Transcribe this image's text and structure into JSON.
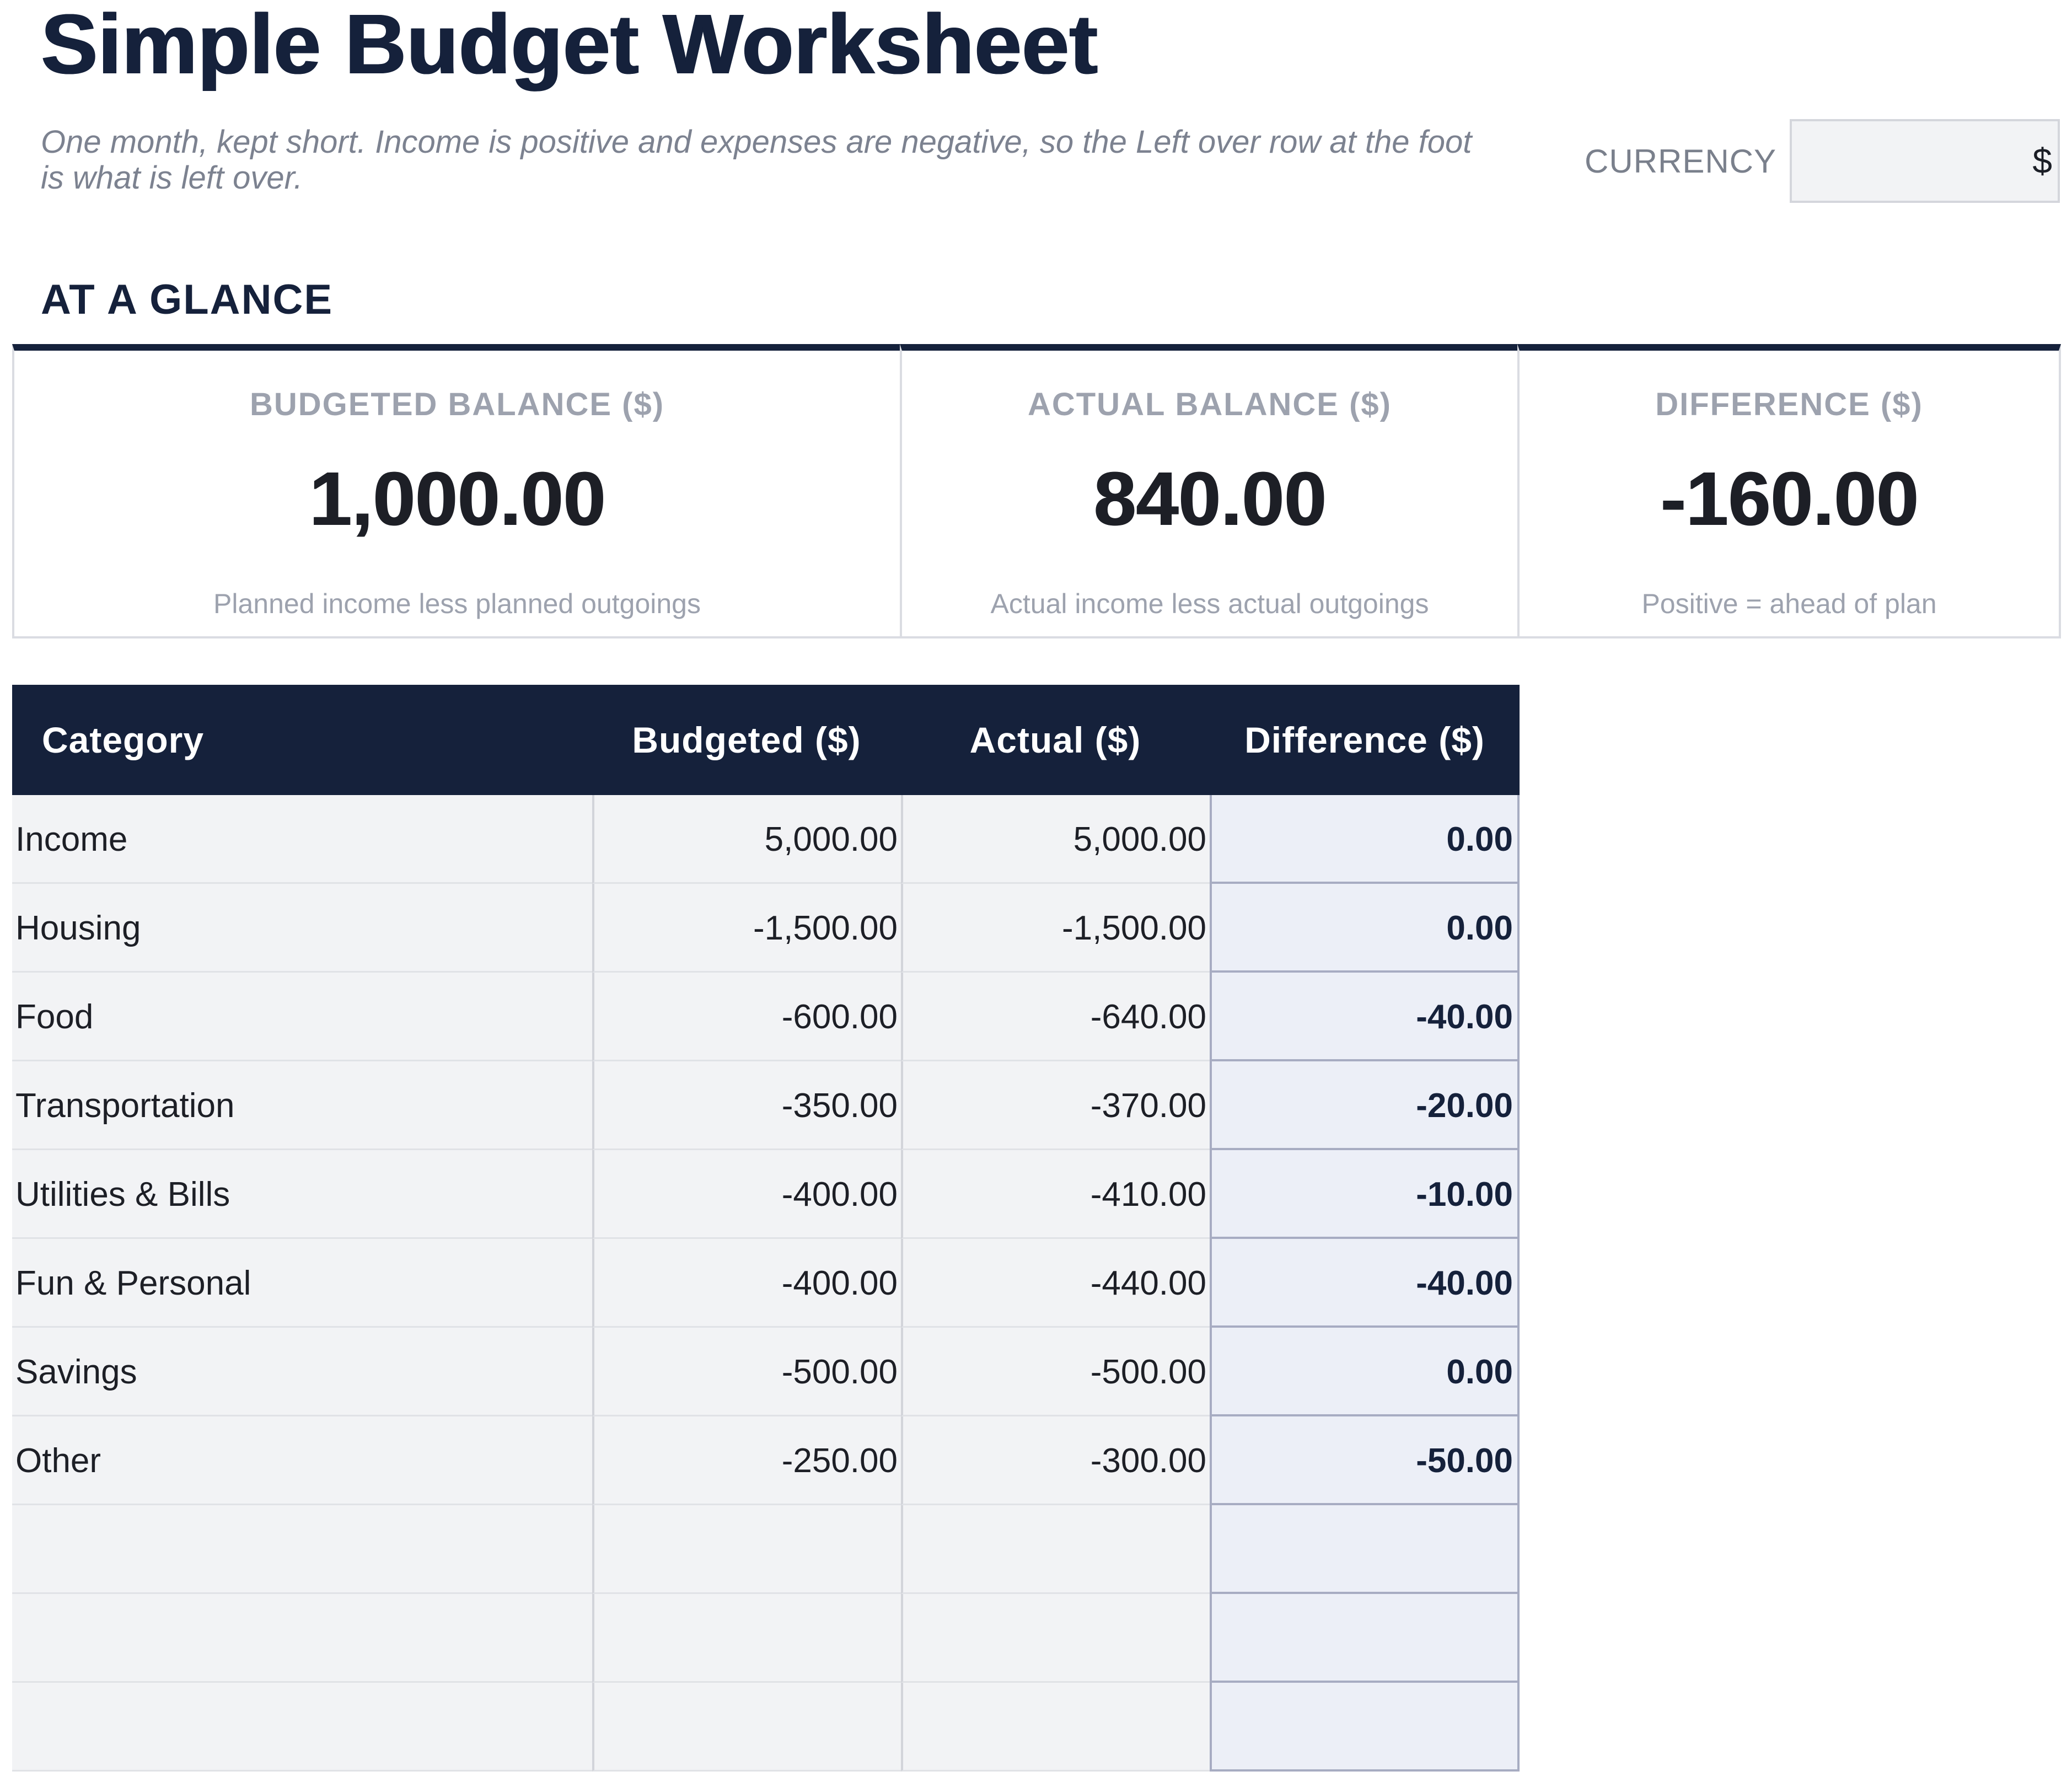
{
  "header": {
    "title": "Simple Budget Worksheet",
    "subtitle": "One month, kept short. Income is positive and expenses are negative, so the Left over row at the foot is what is left over.",
    "currency_label": "CURRENCY",
    "currency_value": "$"
  },
  "glance": {
    "section_title": "AT A GLANCE",
    "cards": [
      {
        "label": "BUDGETED BALANCE ($)",
        "value": "1,000.00",
        "note": "Planned income less planned outgoings"
      },
      {
        "label": "ACTUAL BALANCE ($)",
        "value": "840.00",
        "note": "Actual income less actual outgoings"
      },
      {
        "label": "DIFFERENCE ($)",
        "value": "-160.00",
        "note": "Positive = ahead of plan"
      }
    ]
  },
  "table": {
    "columns": [
      "Category",
      "Budgeted ($)",
      "Actual ($)",
      "Difference ($)"
    ],
    "rows": [
      {
        "category": "Income",
        "budgeted": "5,000.00",
        "actual": "5,000.00",
        "difference": "0.00"
      },
      {
        "category": "Housing",
        "budgeted": "-1,500.00",
        "actual": "-1,500.00",
        "difference": "0.00"
      },
      {
        "category": "Food",
        "budgeted": "-600.00",
        "actual": "-640.00",
        "difference": "-40.00"
      },
      {
        "category": "Transportation",
        "budgeted": "-350.00",
        "actual": "-370.00",
        "difference": "-20.00"
      },
      {
        "category": "Utilities & Bills",
        "budgeted": "-400.00",
        "actual": "-410.00",
        "difference": "-10.00"
      },
      {
        "category": "Fun & Personal",
        "budgeted": "-400.00",
        "actual": "-440.00",
        "difference": "-40.00"
      },
      {
        "category": "Savings",
        "budgeted": "-500.00",
        "actual": "-500.00",
        "difference": "0.00"
      },
      {
        "category": "Other",
        "budgeted": "-250.00",
        "actual": "-300.00",
        "difference": "-50.00"
      },
      {
        "category": "",
        "budgeted": "",
        "actual": "",
        "difference": ""
      },
      {
        "category": "",
        "budgeted": "",
        "actual": "",
        "difference": ""
      },
      {
        "category": "",
        "budgeted": "",
        "actual": "",
        "difference": ""
      }
    ]
  },
  "colors": {
    "navy": "#15213b",
    "cell_bg": "#f2f3f5",
    "diff_bg": "#eceff7",
    "muted_text": "#9da2ae"
  }
}
